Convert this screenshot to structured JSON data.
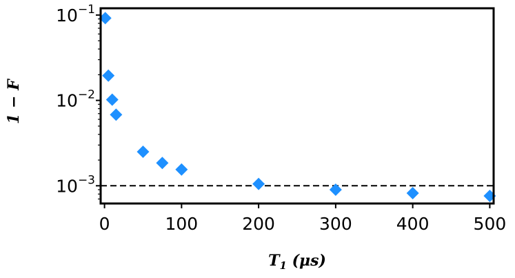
{
  "chart_data": {
    "type": "scatter",
    "title": "",
    "xlabel": "T_1 (μs)",
    "ylabel": "1 − F",
    "x_scale": "linear",
    "y_scale": "log",
    "xlim": [
      -5,
      505
    ],
    "ylim": [
      0.00062,
      0.12
    ],
    "x_ticks": [
      0,
      100,
      200,
      300,
      400,
      500
    ],
    "x_tick_labels": [
      "0",
      "100",
      "200",
      "300",
      "400",
      "500"
    ],
    "y_ticks": [
      0.001,
      0.01,
      0.1
    ],
    "y_tick_labels": [
      {
        "base": "10",
        "exp": "−3"
      },
      {
        "base": "10",
        "exp": "−2"
      },
      {
        "base": "10",
        "exp": "−1"
      }
    ],
    "grid": false,
    "marker": "diamond",
    "marker_color": "#1E90FF",
    "points": [
      {
        "x": 1,
        "y": 0.092
      },
      {
        "x": 5,
        "y": 0.0195
      },
      {
        "x": 10,
        "y": 0.0102
      },
      {
        "x": 15,
        "y": 0.0068
      },
      {
        "x": 50,
        "y": 0.0025
      },
      {
        "x": 75,
        "y": 0.00185
      },
      {
        "x": 100,
        "y": 0.00155
      },
      {
        "x": 200,
        "y": 0.00105
      },
      {
        "x": 300,
        "y": 0.0009
      },
      {
        "x": 400,
        "y": 0.00082
      },
      {
        "x": 500,
        "y": 0.00076
      }
    ],
    "reference_line": {
      "y": 0.001,
      "style": "dashed",
      "color": "#000000"
    }
  }
}
